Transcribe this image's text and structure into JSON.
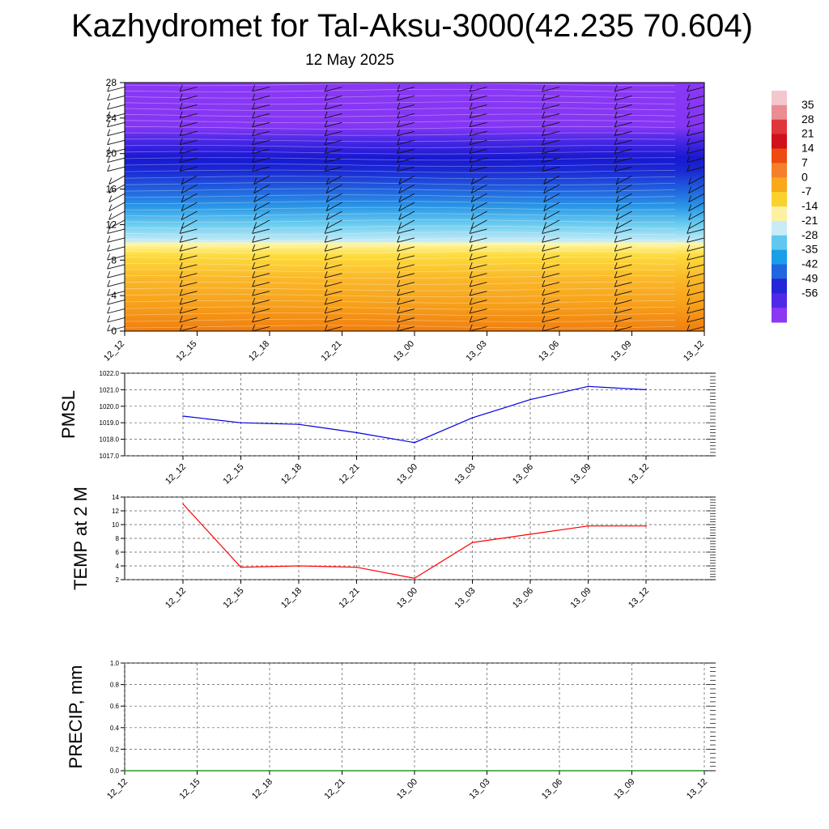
{
  "title": "Kazhydromet for Tal-Aksu-3000(42.235 70.604)",
  "subtitle": "12 May 2025",
  "chart_data": [
    {
      "type": "heatmap",
      "panel": "height-time cross section",
      "x_ticks": [
        "12_12",
        "12_15",
        "12_18",
        "12_21",
        "13_00",
        "13_03",
        "13_06",
        "13_09",
        "13_12"
      ],
      "y_ticks": [
        0,
        4,
        8,
        12,
        16,
        20,
        24,
        28
      ],
      "ylim": [
        0,
        28
      ],
      "colorbar_labels": [
        35,
        28,
        21,
        14,
        7,
        0,
        -7,
        -14,
        -21,
        -28,
        -35,
        -42,
        -49,
        -56
      ],
      "colorbar_colors": [
        "#f2c8cc",
        "#ea8c92",
        "#e0353a",
        "#d0101a",
        "#ee4a12",
        "#f4802a",
        "#f8a818",
        "#fbd22c",
        "#fdf0a0",
        "#c8ecf6",
        "#60c8ee",
        "#1a9ee8",
        "#1f66e0",
        "#2424d8",
        "#5028e8",
        "#8a38f4"
      ],
      "profile": [
        {
          "z": 0,
          "color": "#f07e10"
        },
        {
          "z": 3,
          "color": "#f7a01a"
        },
        {
          "z": 6,
          "color": "#fab92a"
        },
        {
          "z": 8.5,
          "color": "#fddb3c"
        },
        {
          "z": 9.9,
          "color": "#fff7a8"
        },
        {
          "z": 10.1,
          "color": "#c6ecf7"
        },
        {
          "z": 12,
          "color": "#6ccdf0"
        },
        {
          "z": 14,
          "color": "#2a98e6"
        },
        {
          "z": 16,
          "color": "#2060de"
        },
        {
          "z": 18,
          "color": "#1a2ad4"
        },
        {
          "z": 19.5,
          "color": "#1818d0"
        },
        {
          "z": 21.5,
          "color": "#4a28e6"
        },
        {
          "z": 23,
          "color": "#8436f4"
        },
        {
          "z": 28,
          "color": "#8a38f4"
        }
      ]
    },
    {
      "type": "line",
      "panel": "pmsl",
      "ylabel": "PMSL",
      "categories": [
        "12_12",
        "12_15",
        "12_18",
        "12_21",
        "13_00",
        "13_03",
        "13_06",
        "13_09",
        "13_12"
      ],
      "values": [
        1019.4,
        1019.0,
        1018.9,
        1018.4,
        1017.8,
        1019.3,
        1020.4,
        1021.2,
        1021.0
      ],
      "ylim": [
        1017.0,
        1022.0
      ],
      "y_ticks": [
        "1017.0",
        "1018.0",
        "1019.0",
        "1020.0",
        "1021.0",
        "1022.0"
      ],
      "color": "#0000e0"
    },
    {
      "type": "line",
      "panel": "temp",
      "ylabel": "TEMP at 2 M",
      "categories": [
        "12_12",
        "12_15",
        "12_18",
        "12_21",
        "13_00",
        "13_03",
        "13_06",
        "13_09",
        "13_12"
      ],
      "values": [
        13.0,
        3.8,
        4.0,
        3.8,
        2.2,
        7.4,
        8.6,
        9.8,
        9.8
      ],
      "ylim": [
        2,
        14
      ],
      "y_ticks": [
        "2",
        "4",
        "6",
        "8",
        "10",
        "12",
        "14"
      ],
      "color": "#ff0000"
    },
    {
      "type": "line",
      "panel": "precip",
      "ylabel": "PRECIP, mm",
      "categories": [
        "12_12",
        "12_15",
        "12_18",
        "12_21",
        "13_00",
        "13_03",
        "13_06",
        "13_09",
        "13_12"
      ],
      "values": [
        0,
        0,
        0,
        0,
        0,
        0,
        0,
        0,
        0
      ],
      "ylim": [
        0,
        1.0
      ],
      "y_ticks": [
        "0.0",
        "0.2",
        "0.4",
        "0.6",
        "0.8",
        "1.0"
      ],
      "color": "#008000"
    }
  ]
}
